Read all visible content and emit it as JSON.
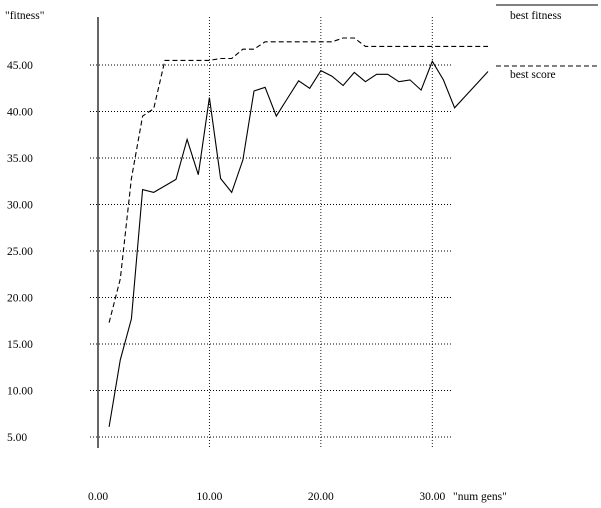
{
  "chart_data": {
    "type": "line",
    "ylabel": "\"fitness\"",
    "xlabel": "\"num gens\"",
    "xlim": [
      0,
      35
    ],
    "ylim": [
      5,
      45
    ],
    "x_ticks": [
      {
        "value": 0,
        "label": "0.00"
      },
      {
        "value": 10,
        "label": "10.00"
      },
      {
        "value": 20,
        "label": "20.00"
      },
      {
        "value": 30,
        "label": "30.00"
      }
    ],
    "y_ticks": [
      {
        "value": 5,
        "label": "5.00"
      },
      {
        "value": 10,
        "label": "10.00"
      },
      {
        "value": 15,
        "label": "15.00"
      },
      {
        "value": 20,
        "label": "20.00"
      },
      {
        "value": 25,
        "label": "25.00"
      },
      {
        "value": 30,
        "label": "30.00"
      },
      {
        "value": 35,
        "label": "35.00"
      },
      {
        "value": 40,
        "label": "40.00"
      },
      {
        "value": 45,
        "label": "45.00"
      }
    ],
    "grid": "dotted",
    "legend_position": "top-right",
    "series": [
      {
        "name": "best fitness",
        "style": "solid",
        "x": [
          1,
          2,
          3,
          4,
          5,
          6,
          7,
          8,
          9,
          10,
          11,
          12,
          13,
          14,
          15,
          16,
          17,
          18,
          19,
          20,
          21,
          22,
          23,
          24,
          25,
          26,
          27,
          28,
          29,
          30,
          31,
          32,
          33,
          34,
          35
        ],
        "y": [
          6.1,
          13.3,
          17.7,
          31.6,
          31.3,
          32.0,
          32.7,
          37.0,
          33.2,
          41.5,
          32.8,
          31.3,
          34.8,
          42.2,
          42.6,
          39.5,
          41.4,
          43.3,
          42.5,
          44.4,
          43.8,
          42.8,
          44.2,
          43.2,
          44.0,
          44.0,
          43.2,
          43.4,
          42.3,
          45.4,
          43.4,
          40.4,
          41.7,
          43.0,
          44.3
        ]
      },
      {
        "name": "best score",
        "style": "dashed",
        "x": [
          1,
          2,
          3,
          4,
          5,
          6,
          7,
          8,
          9,
          10,
          11,
          12,
          13,
          14,
          15,
          16,
          17,
          18,
          19,
          20,
          21,
          22,
          23,
          24,
          25,
          26,
          27,
          28,
          29,
          30,
          31,
          32,
          33,
          34,
          35
        ],
        "y": [
          17.3,
          22.0,
          32.8,
          39.5,
          40.3,
          45.5,
          45.5,
          45.5,
          45.5,
          45.5,
          45.7,
          45.7,
          46.7,
          46.7,
          47.5,
          47.5,
          47.5,
          47.5,
          47.5,
          47.5,
          47.5,
          47.9,
          47.9,
          47.0,
          47.0,
          47.0,
          47.0,
          47.0,
          47.0,
          47.0,
          47.0,
          47.0,
          47.0,
          47.0,
          47.0
        ]
      }
    ]
  }
}
